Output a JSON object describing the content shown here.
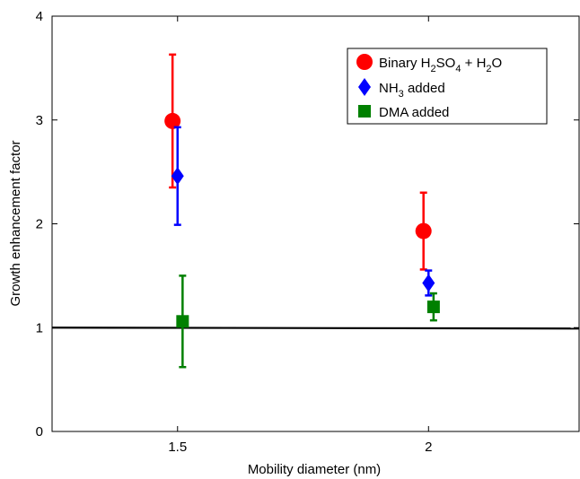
{
  "chart_data": {
    "type": "scatter",
    "xlabel": "Mobility diameter (nm)",
    "ylabel": "Growth enhancement factor",
    "xlim": [
      1.25,
      2.3
    ],
    "ylim": [
      0,
      4
    ],
    "x_ticks": [
      1.5,
      2
    ],
    "x_tick_labels": [
      "1.5",
      "2"
    ],
    "y_ticks": [
      0,
      1,
      2,
      3,
      4
    ],
    "y_tick_labels": [
      "0",
      "1",
      "2",
      "3",
      "4"
    ],
    "grid": false,
    "legend_position": "top-right",
    "reference_line": {
      "y": 1,
      "color": "#000000"
    },
    "series": [
      {
        "name": "Binary H2SO4 + H2O",
        "marker": "circle",
        "color": "#ff0000",
        "points": [
          {
            "x": 1.49,
            "y": 2.99,
            "err_low": 2.35,
            "err_high": 3.63
          },
          {
            "x": 1.99,
            "y": 1.93,
            "err_low": 1.56,
            "err_high": 2.3
          }
        ]
      },
      {
        "name": "NH3 added",
        "marker": "diamond",
        "color": "#0000ff",
        "points": [
          {
            "x": 1.5,
            "y": 2.46,
            "err_low": 1.99,
            "err_high": 2.93
          },
          {
            "x": 2.0,
            "y": 1.43,
            "err_low": 1.31,
            "err_high": 1.55
          }
        ]
      },
      {
        "name": "DMA added",
        "marker": "square",
        "color": "#008000",
        "points": [
          {
            "x": 1.51,
            "y": 1.06,
            "err_low": 0.62,
            "err_high": 1.5
          },
          {
            "x": 2.01,
            "y": 1.2,
            "err_low": 1.07,
            "err_high": 1.33
          }
        ]
      }
    ],
    "legend": [
      {
        "label": "Binary H2SO4 + H2O",
        "main": "Binary H",
        "parts": [
          "2",
          "SO",
          "4",
          " + H",
          "2",
          "O"
        ]
      },
      {
        "label": "NH3 added",
        "main": "NH",
        "parts": [
          "3",
          " added"
        ]
      },
      {
        "label": "DMA added",
        "main": "DMA added",
        "parts": []
      }
    ]
  }
}
